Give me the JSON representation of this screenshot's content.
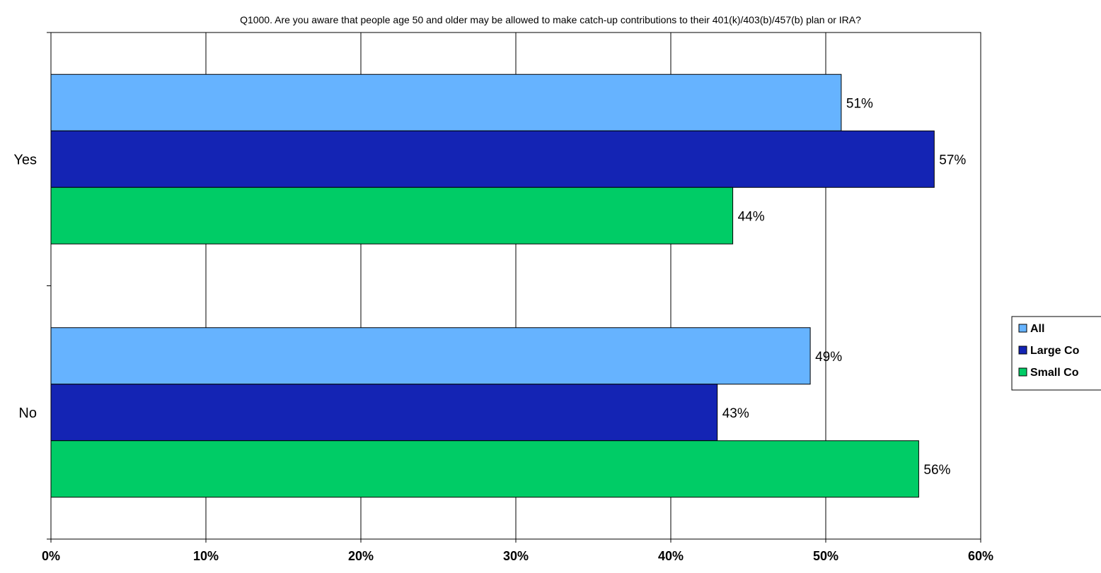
{
  "chart_data": {
    "type": "bar",
    "orientation": "horizontal",
    "title": "Q1000. Are you aware that people age 50 and older may be allowed to make catch-up contributions to their 401(k)/403(b)/457(b) plan or IRA?",
    "categories": [
      "Yes",
      "No"
    ],
    "series": [
      {
        "name": "All",
        "values": [
          51,
          49
        ],
        "color": "#66b3ff"
      },
      {
        "name": "Large Co",
        "values": [
          57,
          43
        ],
        "color": "#1424b4"
      },
      {
        "name": "Small Co",
        "values": [
          44,
          56
        ],
        "color": "#00cc66"
      }
    ],
    "value_labels": [
      [
        "51%",
        "49%"
      ],
      [
        "57%",
        "43%"
      ],
      [
        "44%",
        "56%"
      ]
    ],
    "xlim": [
      0,
      60
    ],
    "xticks": [
      0,
      10,
      20,
      30,
      40,
      50,
      60
    ],
    "xtick_labels": [
      "0%",
      "10%",
      "20%",
      "30%",
      "40%",
      "50%",
      "60%"
    ],
    "grid": true,
    "legend_position": "right"
  }
}
